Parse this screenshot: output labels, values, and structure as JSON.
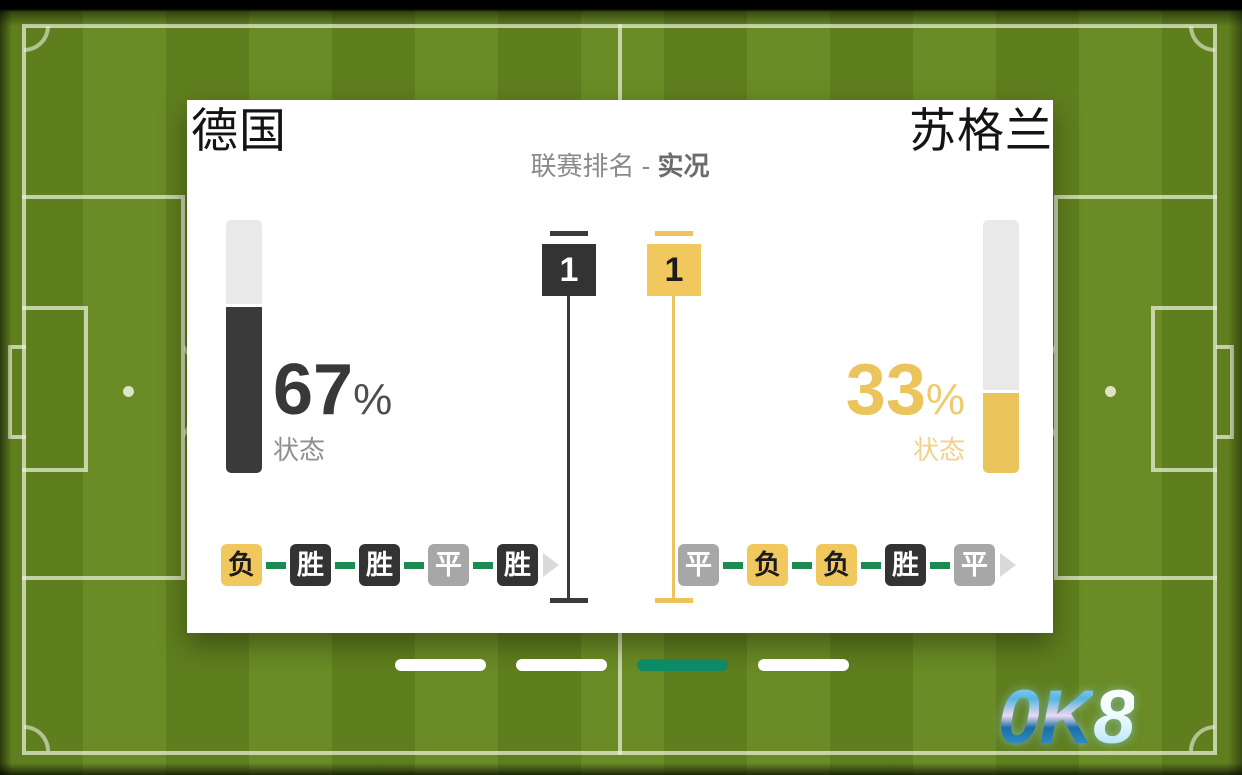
{
  "match": {
    "home_team": "德国",
    "away_team": "苏格兰"
  },
  "panel": {
    "title_prefix": "联赛排名 - ",
    "title_emphasis": "实况",
    "home": {
      "percent": "67",
      "percent_symbol": "%",
      "label": "状态",
      "rank": "1"
    },
    "away": {
      "percent": "33",
      "percent_symbol": "%",
      "label": "状态",
      "rank": "1"
    },
    "home_form": [
      {
        "label": "负",
        "result": "loss"
      },
      {
        "label": "胜",
        "result": "win"
      },
      {
        "label": "胜",
        "result": "win"
      },
      {
        "label": "平",
        "result": "draw"
      },
      {
        "label": "胜",
        "result": "win"
      }
    ],
    "away_form": [
      {
        "label": "平",
        "result": "draw"
      },
      {
        "label": "负",
        "result": "loss"
      },
      {
        "label": "负",
        "result": "loss"
      },
      {
        "label": "胜",
        "result": "win"
      },
      {
        "label": "平",
        "result": "draw"
      }
    ]
  },
  "pagination": {
    "bars": [
      {
        "active": false
      },
      {
        "active": false
      },
      {
        "active": true
      },
      {
        "active": false
      }
    ]
  },
  "logo": {
    "letters": [
      "0",
      "K",
      "8"
    ]
  },
  "colors": {
    "win": "#333333",
    "loss": "#f0c85e",
    "draw": "#a7a7a7",
    "form_dash_green": "#1e8a4f",
    "active_page_bar": "#0e8a66",
    "home_accent": "#3a3a3a",
    "away_accent": "#ecc45c"
  }
}
